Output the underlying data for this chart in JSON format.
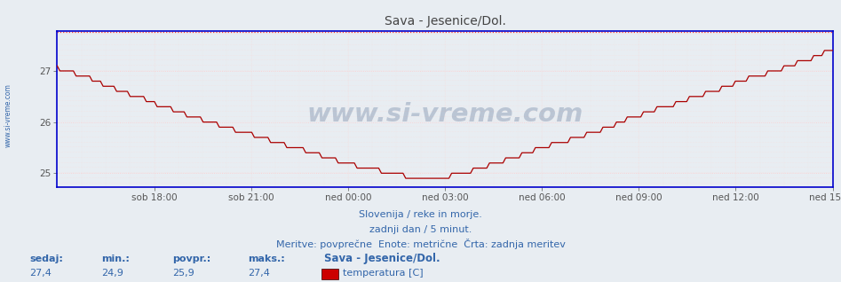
{
  "title": "Sava - Jesenice/Dol.",
  "bg_color": "#e8edf2",
  "plot_bg_color": "#e8edf2",
  "line_color": "#aa0000",
  "max_line_color": "#ff4444",
  "border_color_x": "#0000cc",
  "border_color_y": "#0000cc",
  "title_color": "#444444",
  "text_color": "#3366aa",
  "ymin": 24.72,
  "ymax": 27.78,
  "yticks": [
    25,
    26,
    27
  ],
  "xtick_labels": [
    "sob 18:00",
    "sob 21:00",
    "ned 00:00",
    "ned 03:00",
    "ned 06:00",
    "ned 09:00",
    "ned 12:00",
    "ned 15:00"
  ],
  "watermark": "www.si-vreme.com",
  "subtitle1": "Slovenija / reke in morje.",
  "subtitle2": "zadnji dan / 5 minut.",
  "subtitle3": "Meritve: povprečne  Enote: metrične  Črta: zadnja meritev",
  "label_sedaj": "sedaj:",
  "label_min": "min.:",
  "label_povpr": "povpr.:",
  "label_maks": "maks.:",
  "val_sedaj": "27,4",
  "val_min": "24,9",
  "val_povpr": "25,9",
  "val_maks": "27,4",
  "legend_station": "Sava - Jesenice/Dol.",
  "legend_var": "temperatura [C]",
  "legend_color": "#cc0000",
  "n_points": 288,
  "temp_max_value": 27.4,
  "temp_min_value": 24.9,
  "watermark_color": "#1a3a6a",
  "left_label": "www.si-vreme.com",
  "left_label_color": "#3366aa",
  "grid_major_color": "#ffcccc",
  "grid_minor_color": "#f5dede",
  "spine_color": "#0000cc"
}
